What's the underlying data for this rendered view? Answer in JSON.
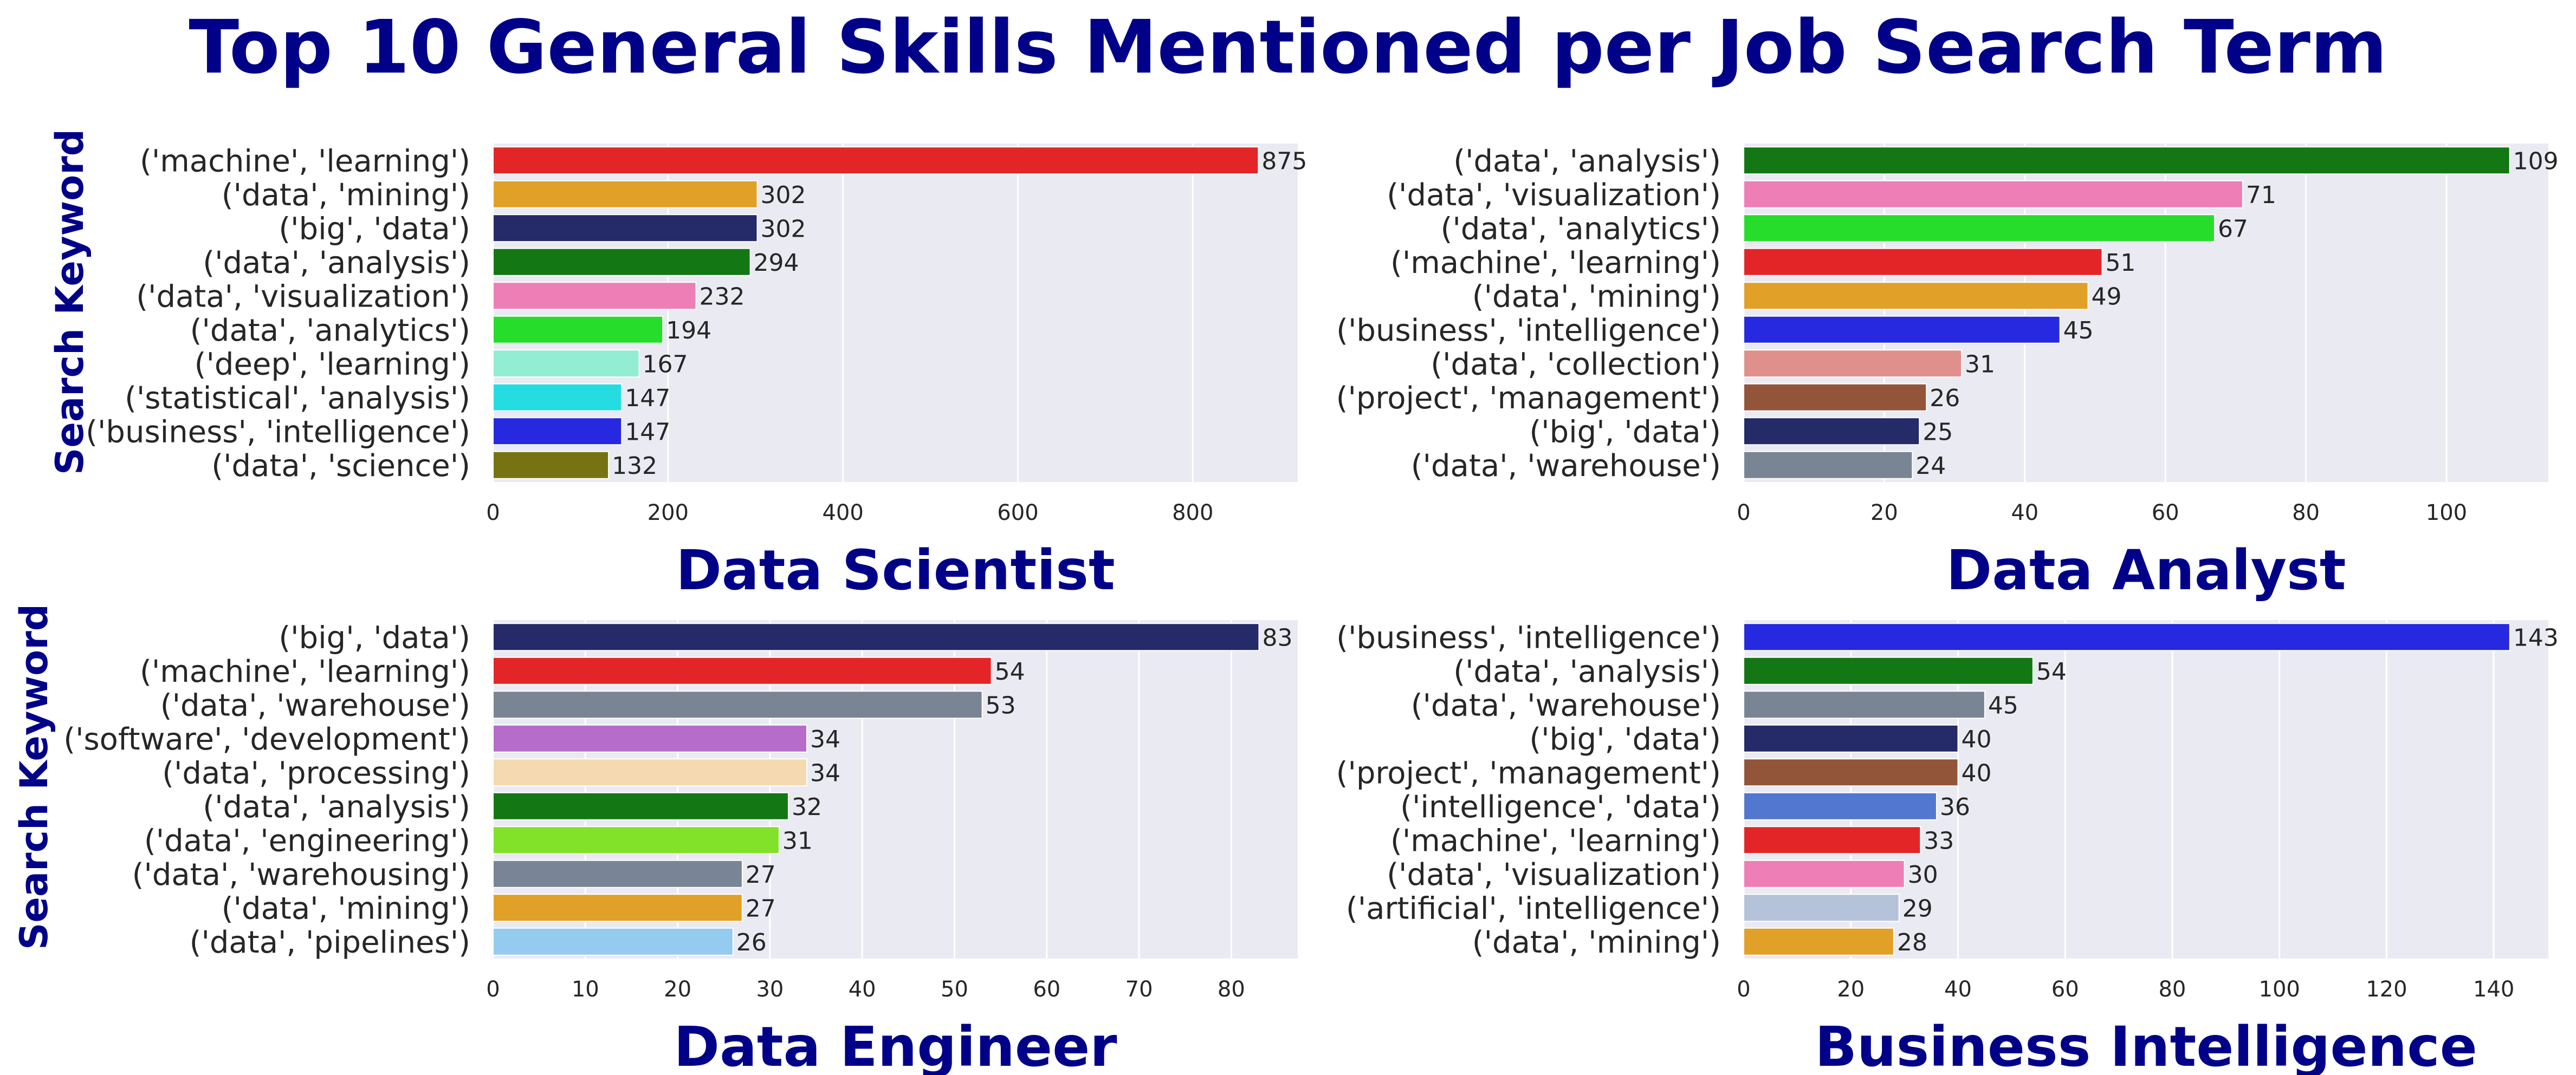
{
  "figure": {
    "title": "Top 10 General Skills Mentioned per Job Search Term",
    "ylabel": "Search Keyword",
    "title_color": "#000088",
    "panel_background": "#eaeaf2"
  },
  "chart_data": [
    {
      "type": "bar",
      "orientation": "horizontal",
      "title": "Data Scientist",
      "ylabel": "Search Keyword",
      "categories": [
        "('machine', 'learning')",
        "('data', 'mining')",
        "('big', 'data')",
        "('data', 'analysis')",
        "('data', 'visualization')",
        "('data', 'analytics')",
        "('deep', 'learning')",
        "('statistical', 'analysis')",
        "('business', 'intelligence')",
        "('data', 'science')"
      ],
      "values": [
        875,
        302,
        302,
        294,
        232,
        194,
        167,
        147,
        147,
        132
      ],
      "colors": [
        "#e32527",
        "#e1a027",
        "#252a68",
        "#137714",
        "#ed7eb6",
        "#25dd2a",
        "#93edd2",
        "#25dde0",
        "#2629e0",
        "#787312"
      ],
      "xlim": [
        0,
        920
      ],
      "xticks": [
        0,
        200,
        400,
        600,
        800
      ],
      "grid": true
    },
    {
      "type": "bar",
      "orientation": "horizontal",
      "title": "Data Analyst",
      "ylabel": "",
      "categories": [
        "('data', 'analysis')",
        "('data', 'visualization')",
        "('data', 'analytics')",
        "('machine', 'learning')",
        "('data', 'mining')",
        "('business', 'intelligence')",
        "('data', 'collection')",
        "('project', 'management')",
        "('big', 'data')",
        "('data', 'warehouse')"
      ],
      "values": [
        109,
        71,
        67,
        51,
        49,
        45,
        31,
        26,
        25,
        24
      ],
      "colors": [
        "#137714",
        "#ed7eb6",
        "#25dd2a",
        "#e32527",
        "#e1a027",
        "#2629e0",
        "#e0908c",
        "#93553a",
        "#252a68",
        "#798594"
      ],
      "xlim": [
        0,
        114.5
      ],
      "xticks": [
        0,
        20,
        40,
        60,
        80,
        100
      ],
      "grid": true
    },
    {
      "type": "bar",
      "orientation": "horizontal",
      "title": "Data Engineer",
      "ylabel": "Search Keyword",
      "categories": [
        "('big', 'data')",
        "('machine', 'learning')",
        "('data', 'warehouse')",
        "('software', 'development')",
        "('data', 'processing')",
        "('data', 'analysis')",
        "('data', 'engineering')",
        "('data', 'warehousing')",
        "('data', 'mining')",
        "('data', 'pipelines')"
      ],
      "values": [
        83,
        54,
        53,
        34,
        34,
        32,
        31,
        27,
        27,
        26
      ],
      "colors": [
        "#252a68",
        "#e32527",
        "#798594",
        "#b66dc9",
        "#f5d9b0",
        "#137714",
        "#82e129",
        "#798594",
        "#e1a027",
        "#94cbee"
      ],
      "xlim": [
        0,
        87.2
      ],
      "xticks": [
        0,
        10,
        20,
        30,
        40,
        50,
        60,
        70,
        80
      ],
      "grid": true
    },
    {
      "type": "bar",
      "orientation": "horizontal",
      "title": "Business Intelligence",
      "ylabel": "",
      "categories": [
        "('business', 'intelligence')",
        "('data', 'analysis')",
        "('data', 'warehouse')",
        "('big', 'data')",
        "('project', 'management')",
        "('intelligence', 'data')",
        "('machine', 'learning')",
        "('data', 'visualization')",
        "('artificial', 'intelligence')",
        "('data', 'mining')"
      ],
      "values": [
        143,
        54,
        45,
        40,
        40,
        36,
        33,
        30,
        29,
        28
      ],
      "colors": [
        "#2629e0",
        "#137714",
        "#798594",
        "#252a68",
        "#93553a",
        "#5177d0",
        "#e32527",
        "#ed7eb6",
        "#b5c3da",
        "#e1a027"
      ],
      "xlim": [
        0,
        150.2
      ],
      "xticks": [
        0,
        20,
        40,
        60,
        80,
        100,
        120,
        140
      ],
      "grid": true
    }
  ]
}
